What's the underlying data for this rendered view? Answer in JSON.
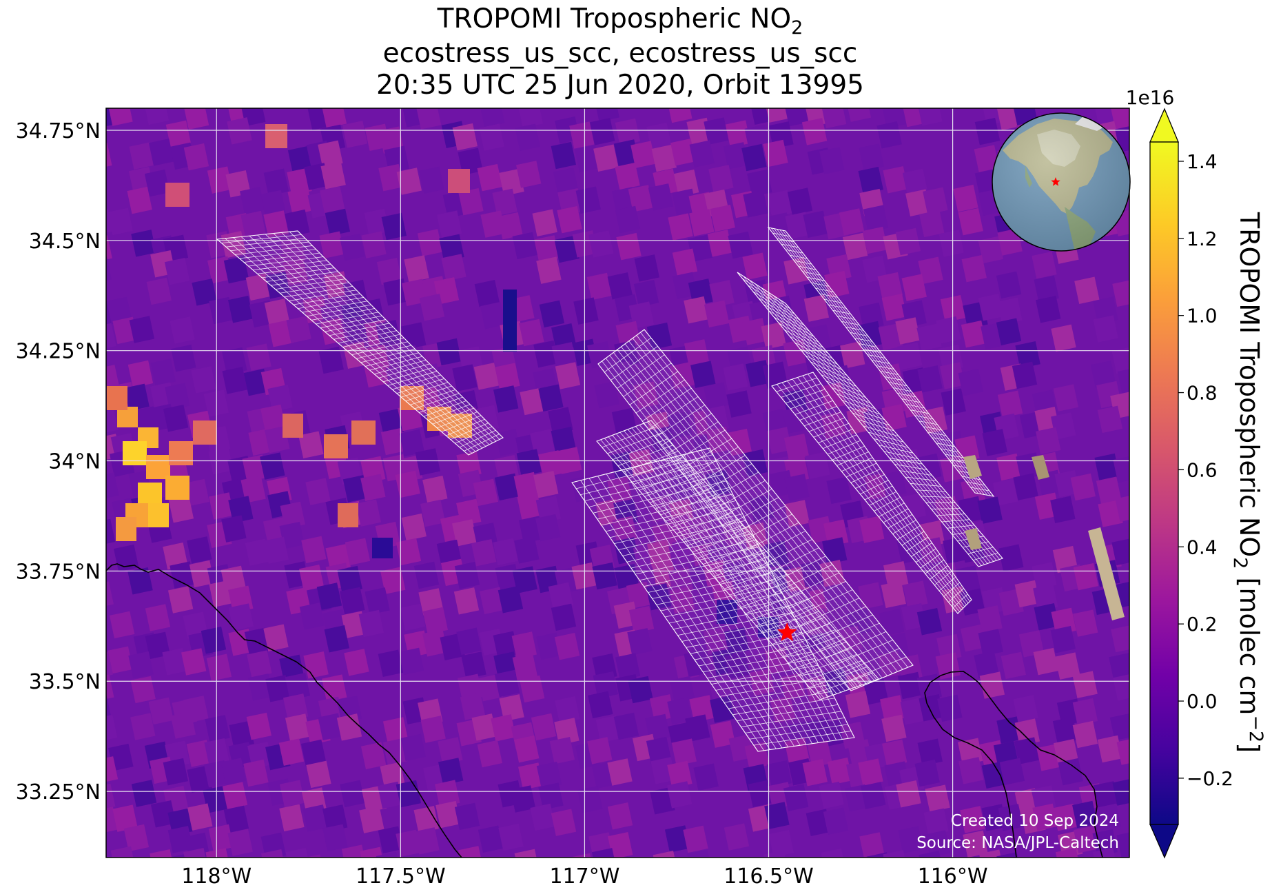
{
  "title": {
    "line1_main": "TROPOMI Tropospheric NO",
    "line1_sub": "2",
    "line2": "ecostress_us_scc, ecostress_us_scc",
    "line3": "20:35 UTC 25 Jun 2020, Orbit 13995"
  },
  "map": {
    "lon_range": [
      -118.3,
      -115.52
    ],
    "lat_range": [
      33.1,
      34.8
    ],
    "gridlines": true,
    "lat_ticks": [
      {
        "value": 34.75,
        "label": "34.75°N"
      },
      {
        "value": 34.5,
        "label": "34.5°N"
      },
      {
        "value": 34.25,
        "label": "34.25°N"
      },
      {
        "value": 34.0,
        "label": "34°N"
      },
      {
        "value": 33.75,
        "label": "33.75°N"
      },
      {
        "value": 33.5,
        "label": "33.5°N"
      },
      {
        "value": 33.25,
        "label": "33.25°N"
      }
    ],
    "lon_ticks": [
      {
        "value": -118.0,
        "label": "118°W"
      },
      {
        "value": -117.5,
        "label": "117.5°W"
      },
      {
        "value": -117.0,
        "label": "117°W"
      },
      {
        "value": -116.5,
        "label": "116.5°W"
      },
      {
        "value": -116.0,
        "label": "116°W"
      }
    ],
    "target_marker": {
      "lon": -116.45,
      "lat": 33.61,
      "color": "#ff0000",
      "symbol": "star"
    },
    "credit_line1": "Created 10 Sep 2024",
    "credit_line2": "Source: NASA/JPL-Caltech",
    "background_color": "#6f14a6",
    "grid_color": "#e6e0f0",
    "footprint_color": "#ffffff"
  },
  "colorbar": {
    "multiplier": "1e16",
    "label_main": "TROPOMI Tropospheric NO",
    "label_sub": "2",
    "label_unit_open": " [molec cm",
    "label_unit_sup": "−2",
    "label_unit_close": "]",
    "range": [
      -0.32,
      1.45
    ],
    "extend": "both",
    "colormap": "plasma",
    "ticks": [
      {
        "value": 1.4,
        "label": "1.4"
      },
      {
        "value": 1.2,
        "label": "1.2"
      },
      {
        "value": 1.0,
        "label": "1.0"
      },
      {
        "value": 0.8,
        "label": "0.8"
      },
      {
        "value": 0.6,
        "label": "0.6"
      },
      {
        "value": 0.4,
        "label": "0.4"
      },
      {
        "value": 0.2,
        "label": "0.2"
      },
      {
        "value": 0.0,
        "label": "0.0"
      },
      {
        "value": -0.2,
        "label": "−0.2"
      }
    ],
    "colors": [
      "#0d0887",
      "#46039f",
      "#7201a8",
      "#9c179e",
      "#bd3786",
      "#d8576b",
      "#ed7953",
      "#fb9f3a",
      "#fdca26",
      "#f0f921"
    ]
  },
  "globe_inset": {
    "ocean_color": "#6f98b8",
    "land_color": "#b9b891",
    "marker_color": "#ff0000"
  }
}
